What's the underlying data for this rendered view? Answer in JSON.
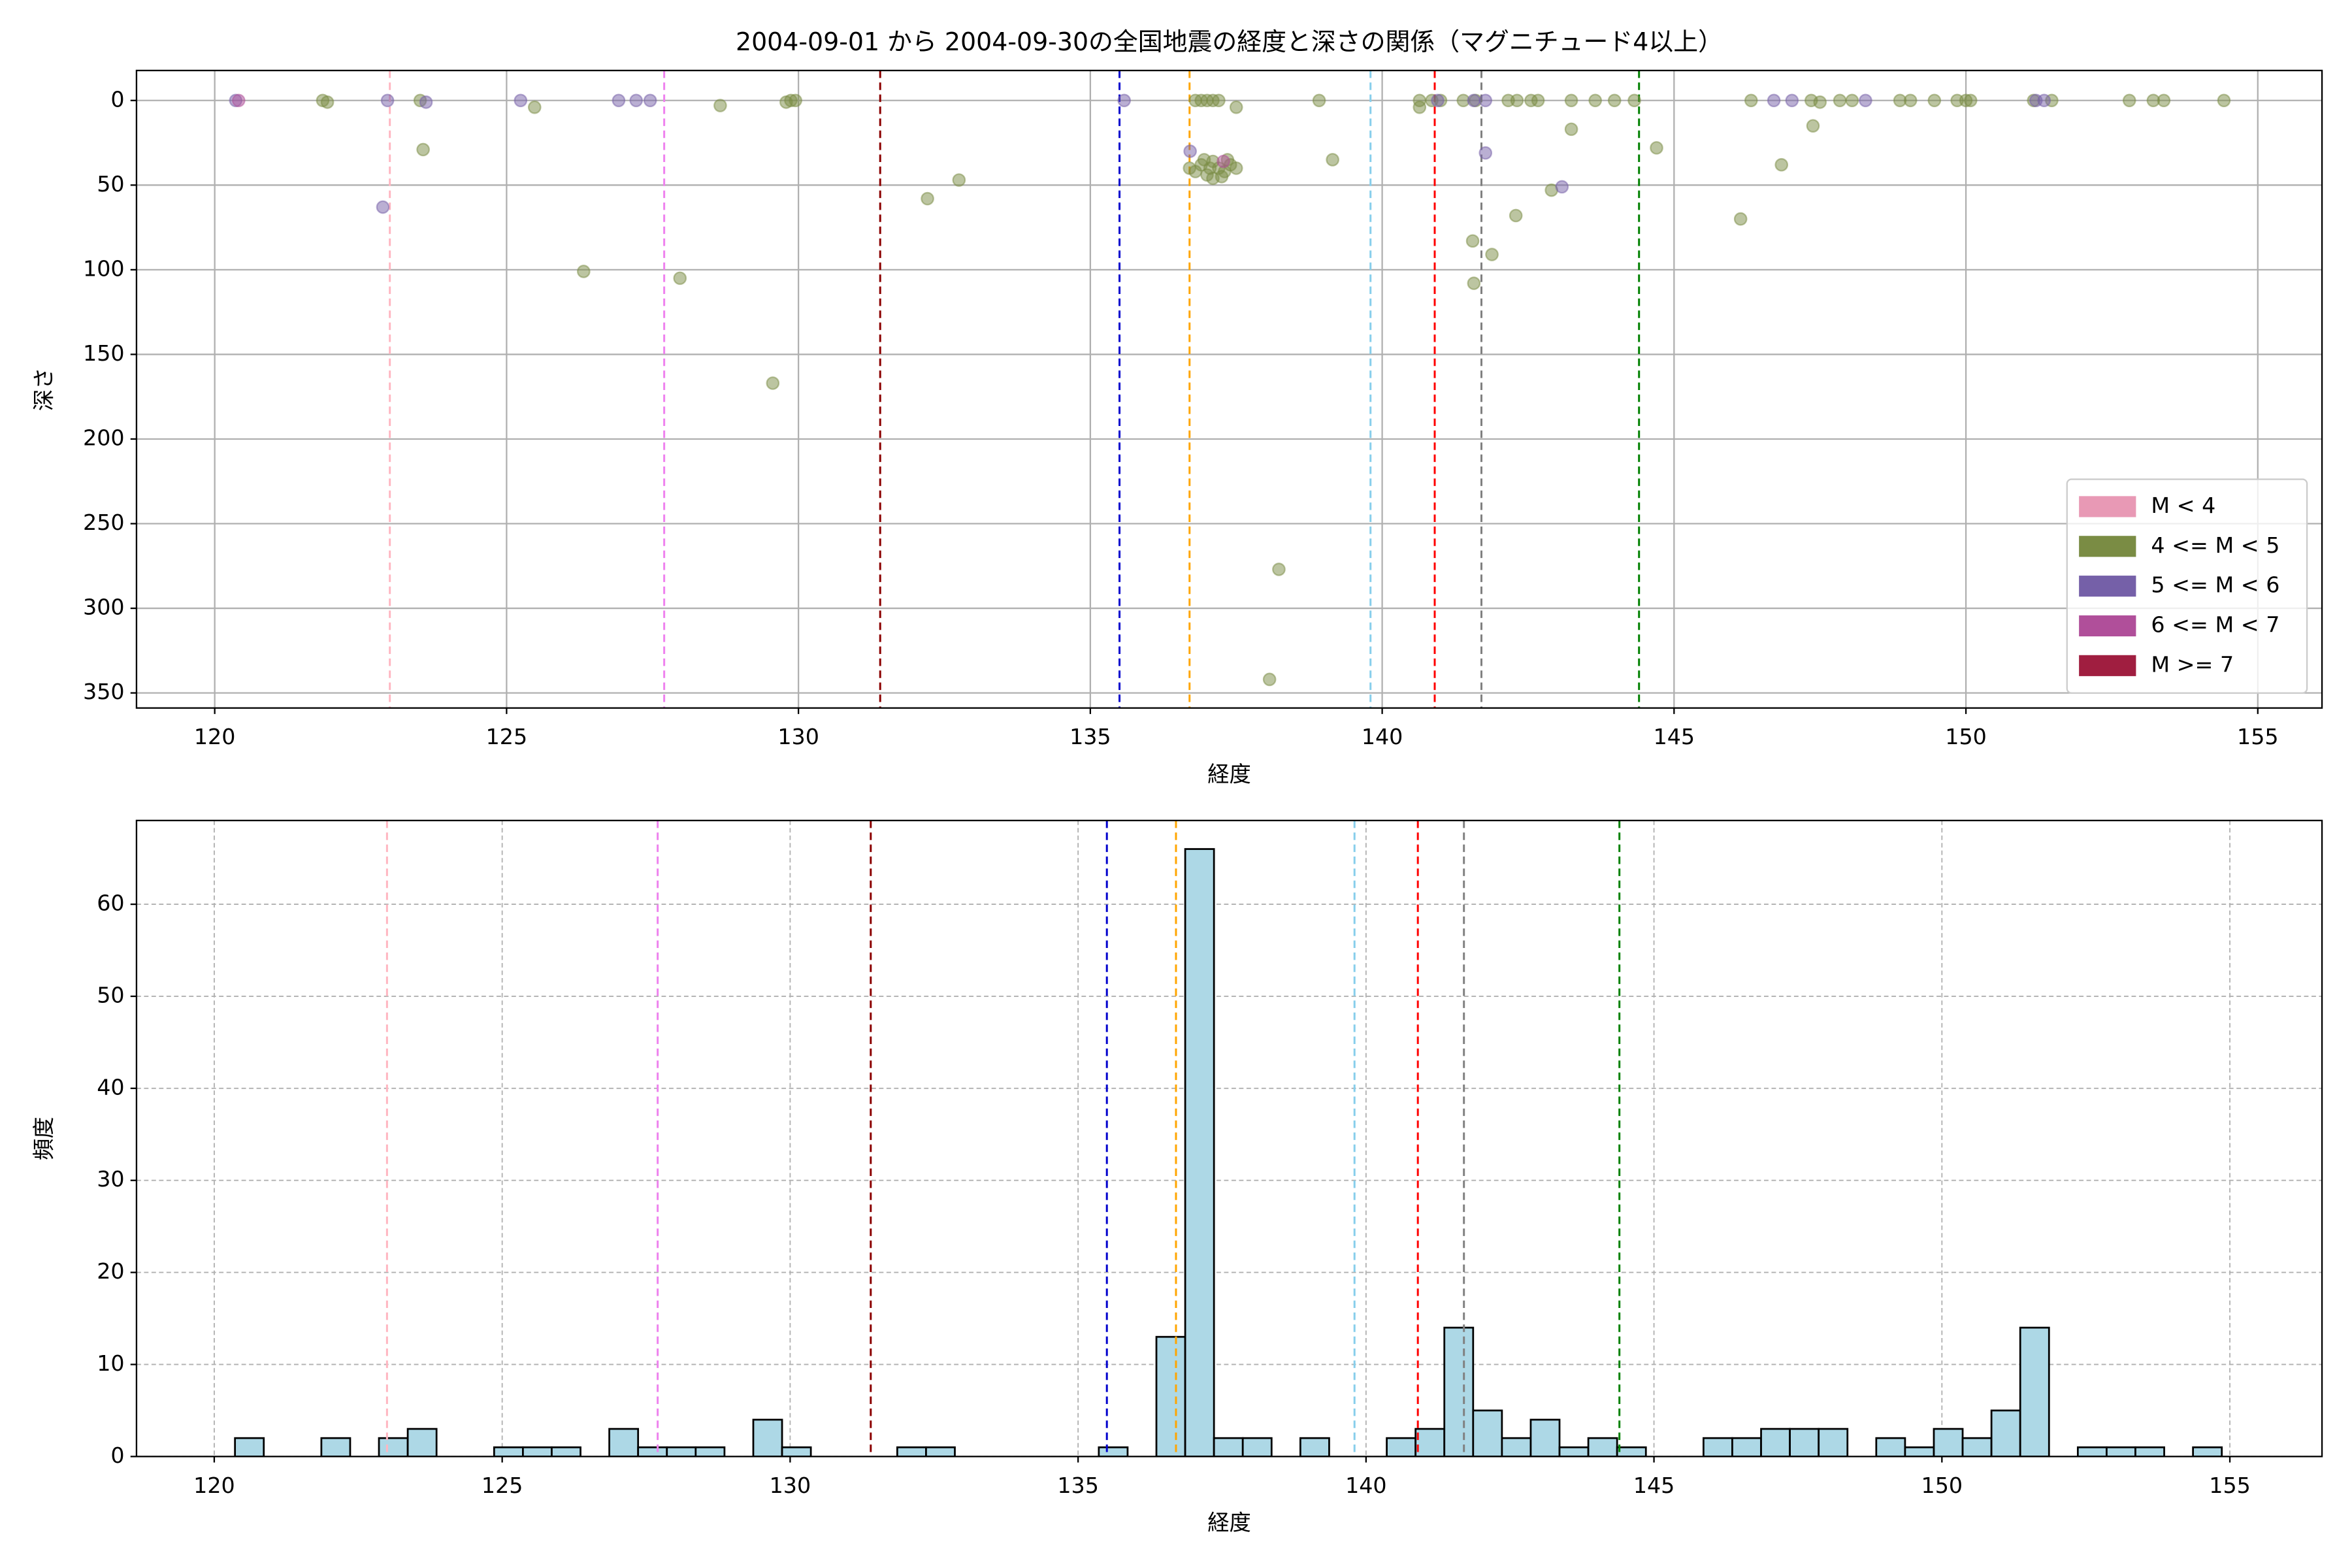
{
  "chart_data": [
    {
      "type": "scatter",
      "title": "2004-09-01 から 2004-09-30の全国地震の経度と深さの関係（マグニチュード4以上）",
      "x_label": "経度",
      "y_label": "深さ",
      "xlim": [
        118.66,
        156.1
      ],
      "ylim": [
        358.9,
        -17.7
      ],
      "xticks": [
        120,
        125,
        130,
        135,
        140,
        145,
        150,
        155
      ],
      "yticks": [
        0,
        50,
        100,
        150,
        200,
        250,
        300,
        350
      ],
      "grid": "solid",
      "legend": "lower right",
      "alpha": 0.5,
      "vlines": [
        {
          "x": 123.0,
          "color": "#ffb6c1"
        },
        {
          "x": 127.7,
          "color": "#ee82ee"
        },
        {
          "x": 131.4,
          "color": "#8b0000"
        },
        {
          "x": 135.5,
          "color": "#0000cd"
        },
        {
          "x": 136.7,
          "color": "#ffa500"
        },
        {
          "x": 139.8,
          "color": "#87ceeb"
        },
        {
          "x": 140.9,
          "color": "#ff0000"
        },
        {
          "x": 141.7,
          "color": "#808080"
        },
        {
          "x": 144.4,
          "color": "#008000"
        }
      ],
      "series": [
        {
          "name": "M < 4",
          "color": "#e899b5",
          "x": [],
          "values": []
        },
        {
          "name": "4 <= M < 5",
          "color": "#7a8c44",
          "x": [
            121.85,
            121.93,
            123.52,
            123.57,
            125.48,
            126.32,
            127.97,
            128.66,
            129.56,
            129.79,
            129.87,
            129.95,
            132.21,
            132.75,
            136.8,
            136.9,
            137.0,
            137.1,
            137.2,
            136.7,
            136.8,
            136.9,
            137.0,
            137.1,
            137.2,
            137.3,
            137.4,
            137.1,
            136.95,
            137.25,
            137.05,
            137.5,
            137.35,
            137.5,
            138.23,
            138.07,
            138.92,
            139.15,
            140.64,
            140.64,
            140.85,
            141.0,
            141.39,
            141.55,
            141.57,
            141.88,
            141.6,
            142.16,
            142.31,
            142.29,
            142.55,
            142.67,
            142.9,
            143.24,
            143.24,
            143.65,
            143.98,
            144.32,
            144.7,
            146.14,
            146.32,
            146.84,
            147.35,
            147.38,
            147.5,
            147.84,
            148.05,
            148.87,
            149.05,
            149.46,
            149.85,
            150.0,
            150.08,
            151.16,
            151.47,
            152.8,
            153.21,
            153.39,
            154.42
          ],
          "values": [
            0,
            1,
            0,
            29,
            4,
            101,
            105,
            3,
            167,
            1,
            0,
            0,
            58,
            47,
            0,
            0,
            0,
            0,
            0,
            40,
            42,
            38,
            44,
            36,
            40,
            42,
            38,
            46,
            35,
            45,
            40,
            40,
            35,
            4,
            277,
            342,
            0,
            35,
            0,
            4,
            0,
            0,
            0,
            83,
            108,
            91,
            0,
            0,
            0,
            68,
            0,
            0,
            53,
            17,
            0,
            0,
            0,
            0,
            28,
            70,
            0,
            38,
            0,
            15,
            1,
            0,
            0,
            0,
            0,
            0,
            0,
            0,
            0,
            0,
            0,
            0,
            0,
            0,
            0
          ]
        },
        {
          "name": "5 <= M < 6",
          "color": "#7560a8",
          "x": [
            120.36,
            122.96,
            122.88,
            123.62,
            125.24,
            126.92,
            127.22,
            127.46,
            135.58,
            136.71,
            140.95,
            141.57,
            141.77,
            141.77,
            143.08,
            146.71,
            147.02,
            148.28,
            151.2,
            151.34
          ],
          "values": [
            0,
            0,
            63,
            1,
            0,
            0,
            0,
            0,
            0,
            30,
            0,
            0,
            0,
            31,
            51,
            0,
            0,
            0,
            0,
            0
          ]
        },
        {
          "name": "6 <= M < 7",
          "color": "#b04f9a",
          "x": [
            120.41,
            137.28
          ],
          "values": [
            0,
            36
          ]
        },
        {
          "name": "M >= 7",
          "color": "#a01e40",
          "x": [],
          "values": []
        }
      ]
    },
    {
      "type": "histogram",
      "x_label": "経度",
      "y_label": "頻度",
      "xlim": [
        118.65,
        156.6
      ],
      "ylim": [
        0,
        69.1
      ],
      "xticks": [
        120,
        125,
        130,
        135,
        140,
        145,
        150,
        155
      ],
      "yticks": [
        0,
        10,
        20,
        30,
        40,
        50,
        60
      ],
      "grid": "dashed",
      "color": "#add8e6",
      "edgecolor": "#000000",
      "vlines": [
        {
          "x": 123.0,
          "color": "#ffb6c1"
        },
        {
          "x": 127.7,
          "color": "#ee82ee"
        },
        {
          "x": 131.4,
          "color": "#8b0000"
        },
        {
          "x": 135.5,
          "color": "#0000cd"
        },
        {
          "x": 136.7,
          "color": "#ffa500"
        },
        {
          "x": 139.8,
          "color": "#87ceeb"
        },
        {
          "x": 140.9,
          "color": "#ff0000"
        },
        {
          "x": 141.7,
          "color": "#808080"
        },
        {
          "x": 144.4,
          "color": "#008000"
        }
      ],
      "bins": [
        120.36,
        120.86,
        121.36,
        121.86,
        122.36,
        122.86,
        123.36,
        123.86,
        124.36,
        124.86,
        125.36,
        125.86,
        126.36,
        126.86,
        127.36,
        127.86,
        128.36,
        128.86,
        129.36,
        129.86,
        130.36,
        130.86,
        131.36,
        131.86,
        132.36,
        132.86,
        133.36,
        133.86,
        134.36,
        134.86,
        135.36,
        135.86,
        136.36,
        136.86,
        137.36,
        137.86,
        138.36,
        138.86,
        139.36,
        139.86,
        140.36,
        140.86,
        141.36,
        141.86,
        142.36,
        142.86,
        143.36,
        143.86,
        144.36,
        144.86,
        145.36,
        145.86,
        146.36,
        146.86,
        147.36,
        147.86,
        148.36,
        148.86,
        149.36,
        149.86,
        150.36,
        150.86,
        151.36,
        151.86,
        152.36,
        152.86,
        153.36,
        153.86,
        154.36,
        154.86
      ],
      "values": [
        2,
        0,
        0,
        2,
        0,
        2,
        3,
        0,
        0,
        1,
        1,
        1,
        0,
        3,
        1,
        1,
        1,
        0,
        4,
        1,
        0,
        0,
        0,
        1,
        1,
        0,
        0,
        0,
        0,
        0,
        1,
        0,
        13,
        66,
        2,
        2,
        0,
        2,
        0,
        0,
        2,
        3,
        14,
        5,
        2,
        4,
        1,
        2,
        1,
        0,
        0,
        2,
        2,
        3,
        3,
        3,
        0,
        2,
        1,
        3,
        2,
        5,
        14,
        0,
        1,
        1,
        1,
        0,
        1
      ]
    }
  ]
}
